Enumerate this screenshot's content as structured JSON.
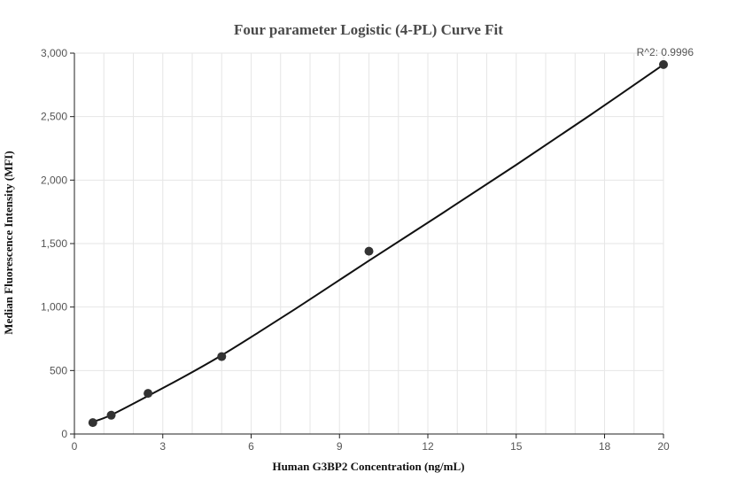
{
  "chart_data": {
    "type": "scatter",
    "title": "Four parameter Logistic (4-PL) Curve Fit",
    "xlabel": "Human G3BP2 Concentration (ng/mL)",
    "ylabel": "Median Fluorescence Intensity (MFI)",
    "xlim": [
      0,
      20
    ],
    "ylim": [
      0,
      3000
    ],
    "x_ticks": [
      0,
      3,
      6,
      9,
      12,
      15,
      18,
      20
    ],
    "x_tick_labels": [
      "0",
      "3",
      "6",
      "9",
      "12",
      "15",
      "18",
      "20"
    ],
    "y_ticks": [
      0,
      500,
      1000,
      1500,
      2000,
      2500,
      3000
    ],
    "y_tick_labels": [
      "0",
      "500",
      "1,000",
      "1,500",
      "2,000",
      "2,500",
      "3,000"
    ],
    "grid": true,
    "points": [
      {
        "x": 0.625,
        "y": 90
      },
      {
        "x": 1.25,
        "y": 148
      },
      {
        "x": 2.5,
        "y": 320
      },
      {
        "x": 5,
        "y": 610
      },
      {
        "x": 10,
        "y": 1440
      },
      {
        "x": 20,
        "y": 2910
      }
    ],
    "fit_curve": {
      "x": [
        0.625,
        1.25,
        2.5,
        3.75,
        5,
        6.25,
        7.5,
        8.75,
        10,
        12.5,
        15,
        17.5,
        20
      ],
      "y": [
        95,
        150,
        300,
        455,
        620,
        800,
        985,
        1175,
        1365,
        1740,
        2120,
        2510,
        2910
      ]
    },
    "annotation": "R^2: 0.9996",
    "colors": {
      "points": "#333333",
      "line": "#111111",
      "grid": "#e6e6e6",
      "axis": "#222222"
    }
  }
}
